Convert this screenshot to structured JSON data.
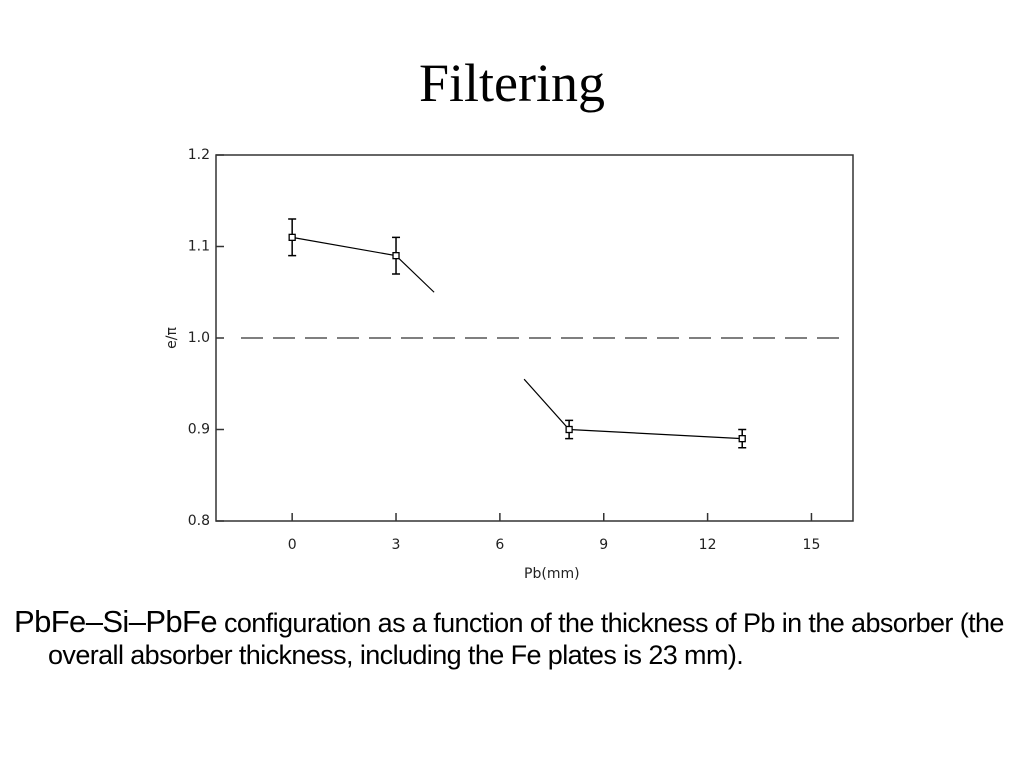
{
  "title": "Filtering",
  "chart_data": {
    "type": "scatter",
    "x_label": "Pb(mm)",
    "y_label": "e/π",
    "xlim": [
      -2.2,
      16.2
    ],
    "ylim": [
      0.8,
      1.2
    ],
    "xticks": [
      0,
      3,
      6,
      9,
      12,
      15
    ],
    "yticks": [
      0.8,
      0.9,
      {
        "value": 1,
        "label": "1.0"
      },
      1.1,
      1.2
    ],
    "reference_line": 1,
    "series": [
      {
        "color": "#000000",
        "x": [
          0,
          3,
          8,
          13
        ],
        "values": [
          1.11,
          1.09,
          0.9,
          0.89
        ],
        "errors": [
          0.02,
          0.02,
          0.01,
          0.01
        ]
      }
    ],
    "trend": {
      "color": "#000000",
      "x": [
        0,
        3,
        4.1,
        null,
        6.7,
        8,
        13
      ],
      "values": [
        1.11,
        1.09,
        1.05,
        null,
        0.955,
        0.9,
        0.89
      ]
    }
  },
  "caption": {
    "lead": "PbFe–Si–PbFe",
    "text": "configuration as a function of the thickness of Pb in the absorber (the overall absorber thickness, including the Fe plates is 23 mm)."
  }
}
